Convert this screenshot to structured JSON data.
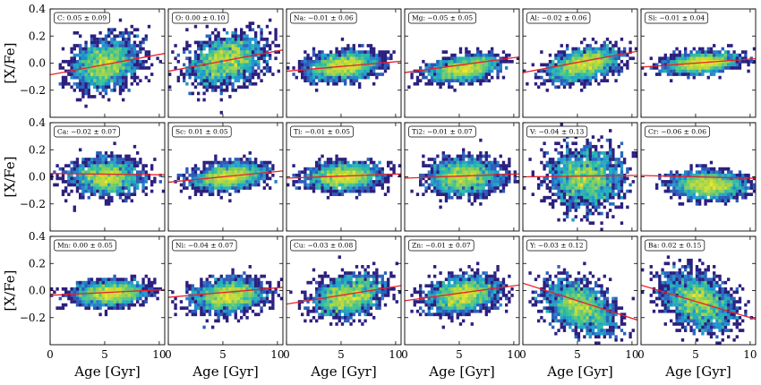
{
  "chart_data": {
    "type": "scatter",
    "subtype": "2d-histogram-grid-with-linear-fits",
    "grid": {
      "rows": 3,
      "cols": 6
    },
    "xlabel": "Age [Gyr]",
    "ylabel": "[X/Fe]",
    "xlim": [
      0,
      10.5
    ],
    "ylim": [
      -0.4,
      0.4
    ],
    "xticks": [
      0,
      5,
      10
    ],
    "yticks": [
      -0.2,
      0.0,
      0.2,
      0.4
    ],
    "ytick_labels": [
      "−0.2",
      "0.0",
      "0.2",
      "0.4"
    ],
    "xtick_labels": [
      "0",
      "5",
      "10"
    ],
    "colors": {
      "fit_line": "#e8202a",
      "colormap": [
        "#2b1f7e",
        "#2d58b8",
        "#1e9bd1",
        "#2ec0a0",
        "#9fd34a",
        "#f0e526"
      ]
    },
    "panels": [
      {
        "element": "C",
        "label": "C: 0.05 ± 0.09",
        "slope": 0.015,
        "intercept": -0.086,
        "xc": 5.0,
        "yc": -0.01,
        "sx": 1.5,
        "sy": 0.09
      },
      {
        "element": "O",
        "label": "O: 0.00 ± 0.10",
        "slope": 0.015,
        "intercept": -0.06,
        "xc": 5.3,
        "yc": 0.02,
        "sx": 1.7,
        "sy": 0.09
      },
      {
        "element": "Na",
        "label": "Na: −0.01 ± 0.06",
        "slope": 0.007,
        "intercept": -0.06,
        "xc": 5.2,
        "yc": -0.02,
        "sx": 1.6,
        "sy": 0.05
      },
      {
        "element": "Mg",
        "label": "Mg: −0.05 ± 0.05",
        "slope": 0.011,
        "intercept": -0.07,
        "xc": 5.5,
        "yc": -0.04,
        "sx": 1.6,
        "sy": 0.045
      },
      {
        "element": "Al",
        "label": "Al: −0.02 ± 0.06",
        "slope": 0.015,
        "intercept": -0.07,
        "xc": 5.6,
        "yc": -0.01,
        "sx": 1.6,
        "sy": 0.055
      },
      {
        "element": "Si",
        "label": "Si: −0.01 ± 0.04",
        "slope": 0.006,
        "intercept": -0.03,
        "xc": 5.6,
        "yc": 0.0,
        "sx": 1.6,
        "sy": 0.035
      },
      {
        "element": "Ca",
        "label": "Ca: −0.02 ± 0.07",
        "slope": -0.001,
        "intercept": 0.025,
        "xc": 5.2,
        "yc": 0.0,
        "sx": 1.6,
        "sy": 0.065
      },
      {
        "element": "Sc",
        "label": "Sc: 0.01 ± 0.05",
        "slope": 0.008,
        "intercept": -0.04,
        "xc": 5.5,
        "yc": 0.0,
        "sx": 1.6,
        "sy": 0.045
      },
      {
        "element": "Ti",
        "label": "Ti: −0.01 ± 0.05",
        "slope": 0.003,
        "intercept": -0.01,
        "xc": 5.3,
        "yc": 0.0,
        "sx": 1.6,
        "sy": 0.05
      },
      {
        "element": "Ti2",
        "label": "Ti2: −0.01 ± 0.07",
        "slope": 0.003,
        "intercept": -0.01,
        "xc": 5.5,
        "yc": 0.0,
        "sx": 1.6,
        "sy": 0.065
      },
      {
        "element": "V",
        "label": "V: −0.04 ± 0.13",
        "slope": 0.001,
        "intercept": 0.0,
        "xc": 5.8,
        "yc": -0.01,
        "sx": 1.7,
        "sy": 0.11
      },
      {
        "element": "Cr",
        "label": "Cr: −0.06 ± 0.06",
        "slope": -0.002,
        "intercept": 0.01,
        "xc": 6.2,
        "yc": -0.06,
        "sx": 1.6,
        "sy": 0.05
      },
      {
        "element": "Mn",
        "label": "Mn: 0.00 ± 0.05",
        "slope": 0.004,
        "intercept": -0.035,
        "xc": 5.5,
        "yc": -0.02,
        "sx": 1.6,
        "sy": 0.045
      },
      {
        "element": "Ni",
        "label": "Ni: −0.04 ± 0.07",
        "slope": 0.007,
        "intercept": -0.05,
        "xc": 5.5,
        "yc": -0.04,
        "sx": 1.6,
        "sy": 0.06
      },
      {
        "element": "Cu",
        "label": "Cu: −0.03 ± 0.08",
        "slope": 0.013,
        "intercept": -0.1,
        "xc": 5.6,
        "yc": -0.04,
        "sx": 1.6,
        "sy": 0.07
      },
      {
        "element": "Zn",
        "label": "Zn: −0.01 ± 0.07",
        "slope": 0.011,
        "intercept": -0.075,
        "xc": 5.4,
        "yc": -0.03,
        "sx": 1.6,
        "sy": 0.065
      },
      {
        "element": "Y",
        "label": "Y: −0.03 ± 0.12",
        "slope": -0.026,
        "intercept": 0.055,
        "xc": 5.2,
        "yc": -0.12,
        "sx": 1.6,
        "sy": 0.09
      },
      {
        "element": "Ba",
        "label": "Ba: 0.02 ± 0.15",
        "slope": -0.024,
        "intercept": 0.04,
        "xc": 5.3,
        "yc": -0.08,
        "sx": 1.6,
        "sy": 0.1
      }
    ]
  }
}
